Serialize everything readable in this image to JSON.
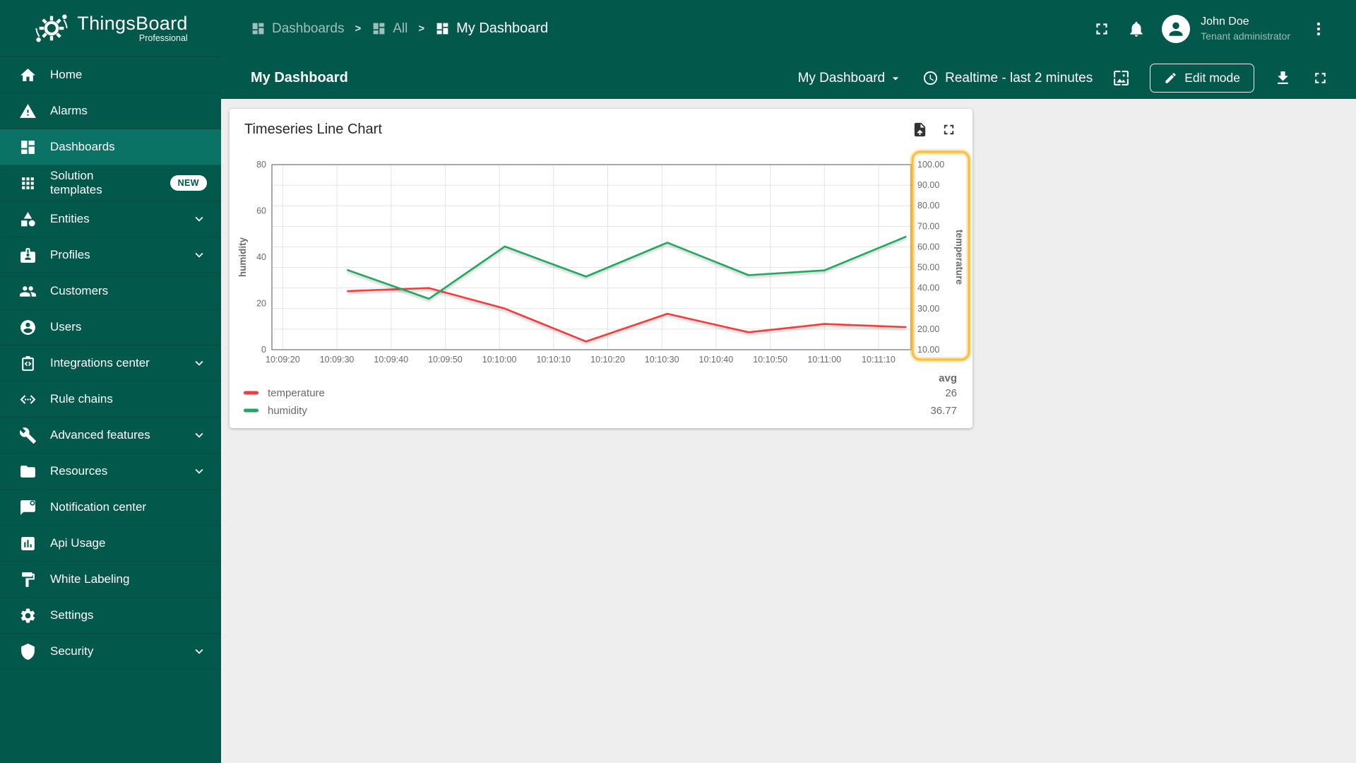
{
  "brand": {
    "name": "ThingsBoard",
    "edition": "Professional"
  },
  "sidebar": {
    "items": [
      {
        "label": "Home",
        "icon": "home-icon",
        "selected": false
      },
      {
        "label": "Alarms",
        "icon": "alarm-warning-icon",
        "selected": false
      },
      {
        "label": "Dashboards",
        "icon": "dashboards-icon",
        "selected": true
      },
      {
        "label": "Solution templates",
        "icon": "solution-templates-icon",
        "selected": false,
        "badge": "NEW"
      },
      {
        "label": "Entities",
        "icon": "entities-icon",
        "selected": false,
        "expandable": true
      },
      {
        "label": "Profiles",
        "icon": "profiles-icon",
        "selected": false,
        "expandable": true
      },
      {
        "label": "Customers",
        "icon": "customers-icon",
        "selected": false
      },
      {
        "label": "Users",
        "icon": "users-icon",
        "selected": false
      },
      {
        "label": "Integrations center",
        "icon": "integrations-icon",
        "selected": false,
        "expandable": true
      },
      {
        "label": "Rule chains",
        "icon": "rule-chains-icon",
        "selected": false
      },
      {
        "label": "Advanced features",
        "icon": "advanced-features-icon",
        "selected": false,
        "expandable": true
      },
      {
        "label": "Resources",
        "icon": "resources-icon",
        "selected": false,
        "expandable": true
      },
      {
        "label": "Notification center",
        "icon": "notification-icon",
        "selected": false
      },
      {
        "label": "Api Usage",
        "icon": "api-usage-icon",
        "selected": false
      },
      {
        "label": "White Labeling",
        "icon": "white-labeling-icon",
        "selected": false
      },
      {
        "label": "Settings",
        "icon": "settings-icon",
        "selected": false
      },
      {
        "label": "Security",
        "icon": "security-icon",
        "selected": false,
        "expandable": true
      }
    ]
  },
  "breadcrumb": {
    "separator": ">",
    "items": [
      {
        "label": "Dashboards",
        "icon": "dashboards-icon",
        "active": false
      },
      {
        "label": "All",
        "icon": "dashboards-icon",
        "active": false
      },
      {
        "label": "My Dashboard",
        "icon": "dashboards-icon",
        "active": true
      }
    ]
  },
  "header": {
    "icons": [
      "fullscreen-icon",
      "bell-icon",
      "more-menu-icon"
    ],
    "user": {
      "name": "John Doe",
      "role": "Tenant administrator"
    }
  },
  "toolbar": {
    "title": "My Dashboard",
    "dashboard_select": {
      "value": "My Dashboard",
      "icon": "caret-down-icon"
    },
    "time_window": {
      "label": "Realtime - last 2 minutes",
      "icon": "clock-icon"
    },
    "edit_button": {
      "label": "Edit mode",
      "icon": "pencil-icon"
    },
    "icons": [
      "image-icon",
      "download-icon",
      "fullscreen-icon"
    ]
  },
  "widget": {
    "title": "Timeseries Line Chart",
    "actions": [
      "export-file-icon",
      "fullscreen-icon"
    ]
  },
  "chart_data": {
    "type": "line",
    "title": "Timeseries Line Chart",
    "x_axis": {
      "start": "10:09:18",
      "end": "10:11:16",
      "ticks": [
        "10:09:20",
        "10:09:30",
        "10:09:40",
        "10:09:50",
        "10:10:00",
        "10:10:10",
        "10:10:20",
        "10:10:30",
        "10:10:40",
        "10:10:50",
        "10:11:00",
        "10:11:10"
      ]
    },
    "left_axis": {
      "name": "humidity",
      "min": 0,
      "max": 80,
      "ticks": [
        "0",
        "20",
        "40",
        "60",
        "80"
      ]
    },
    "right_axis": {
      "name": "temperature",
      "min": 10,
      "max": 100,
      "ticks": [
        "10.00",
        "20.00",
        "30.00",
        "40.00",
        "50.00",
        "60.00",
        "70.00",
        "80.00",
        "90.00",
        "100.00"
      ],
      "highlighted": true
    },
    "timestamps": [
      "10:09:32",
      "10:09:47",
      "10:10:01",
      "10:10:16",
      "10:10:31",
      "10:10:46",
      "10:11:00",
      "10:11:15"
    ],
    "series": [
      {
        "name": "temperature",
        "y_axis": "right",
        "color": "#F23C3C",
        "values": [
          38.5,
          40,
          30,
          14,
          27.5,
          18.5,
          22.5,
          21
        ],
        "avg": "26"
      },
      {
        "name": "humidity",
        "y_axis": "left",
        "color": "#21A75F",
        "values": [
          34.4,
          22,
          44.6,
          31.6,
          46.3,
          32.2,
          34.3,
          48.8
        ],
        "avg": "36.77"
      }
    ],
    "legend": {
      "avg_label": "avg",
      "grid": true,
      "legend_position": "bottom"
    }
  },
  "colors": {
    "primary_teal": "#02584A",
    "sidebar_selected": "#0A7366",
    "content_bg": "#EEEEEE",
    "card_bg": "#FFFFFF",
    "temperature_line": "#F23C3C",
    "humidity_line": "#21A75F",
    "avg_header": "#F4703D",
    "axis_highlight": "#F7BF44",
    "gridline": "#E4E4E4",
    "axis_border": "#777C85"
  }
}
